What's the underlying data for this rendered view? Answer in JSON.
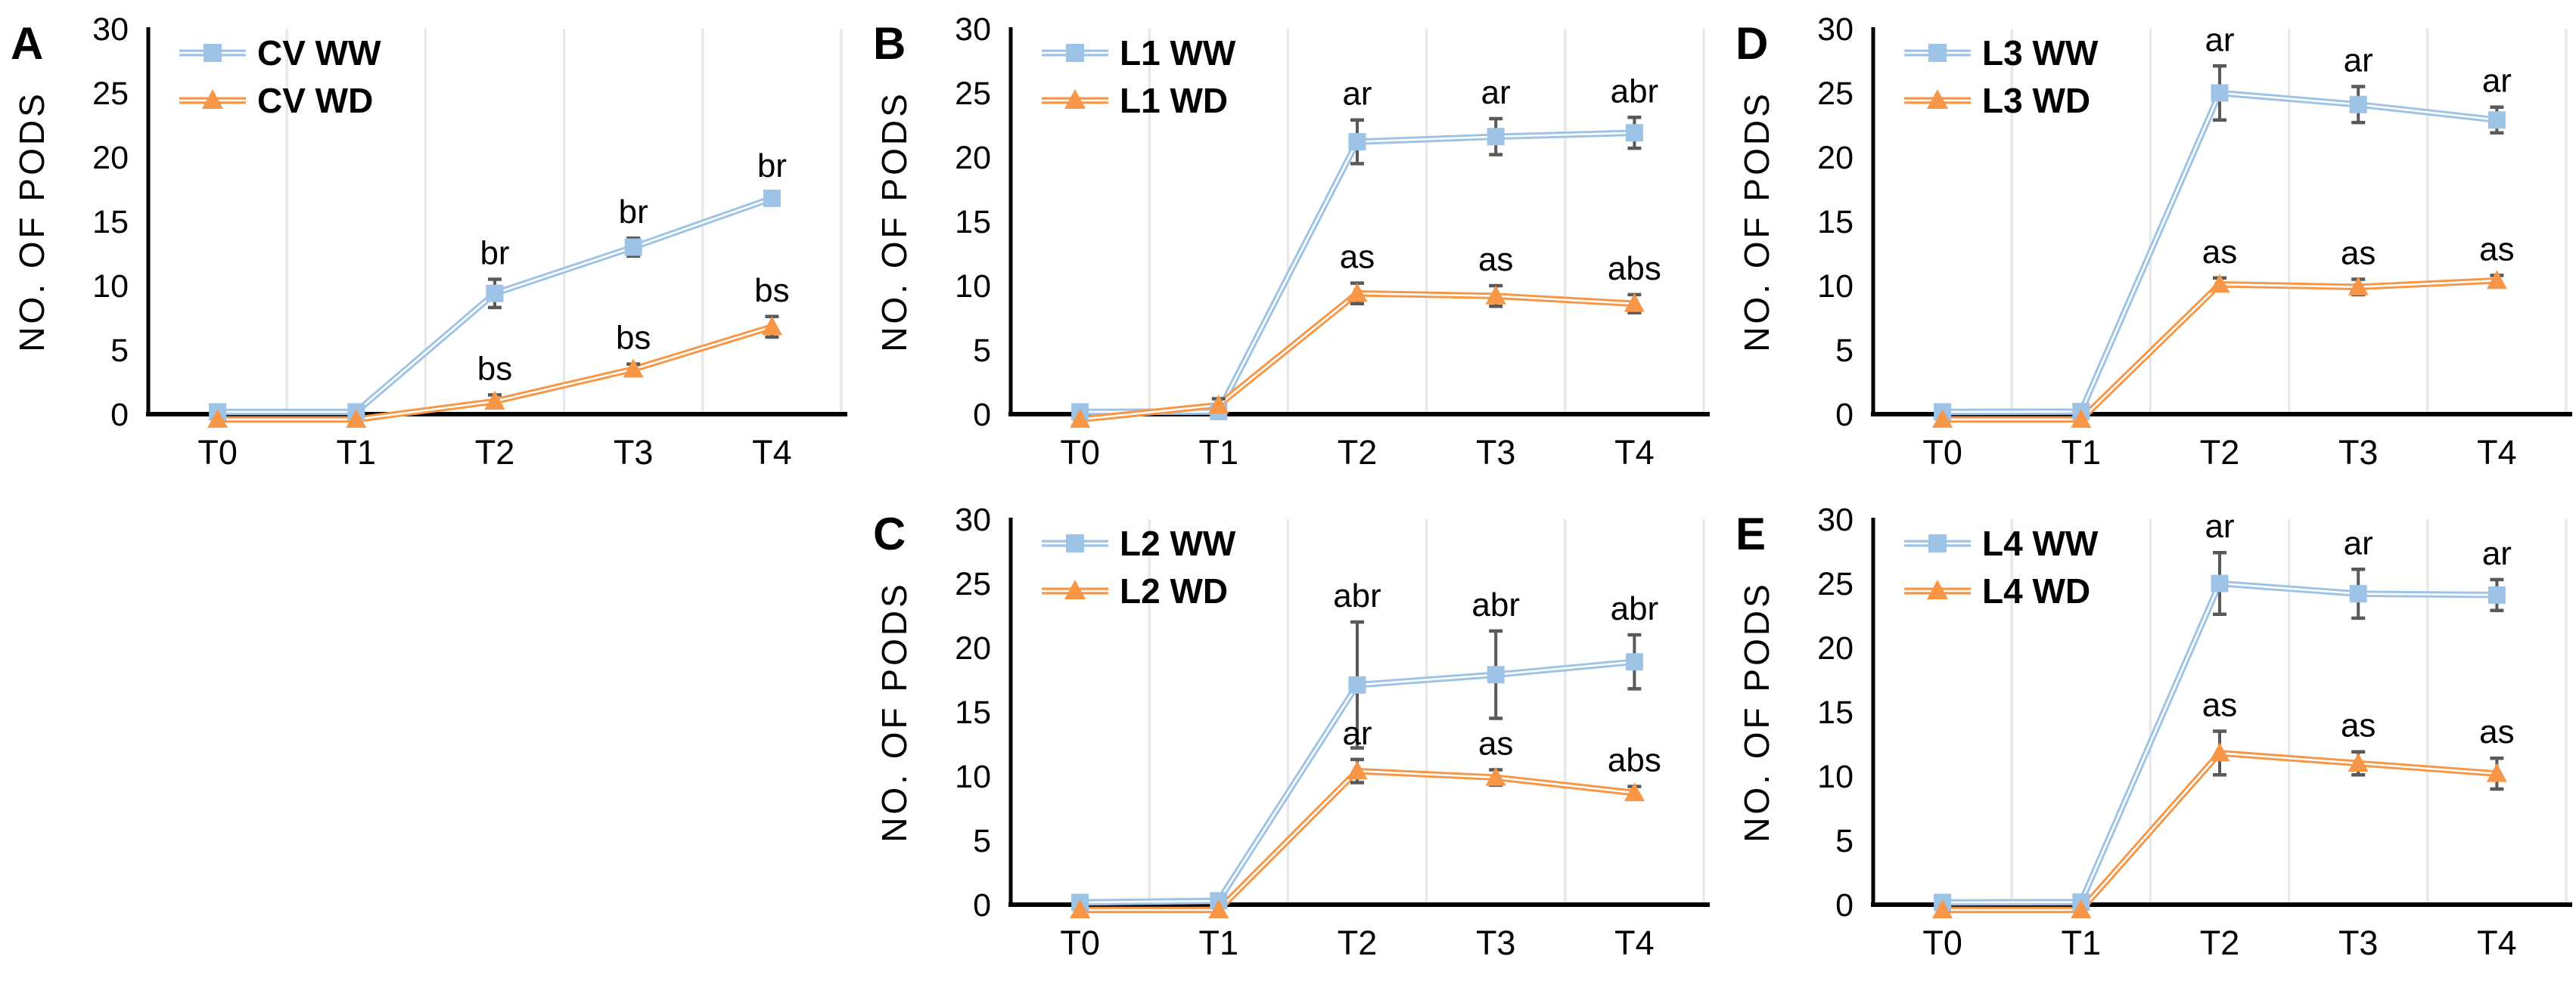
{
  "figure": {
    "background": "#FFFFFF",
    "y_axis_title": "NO. OF PODS",
    "x_tick_labels": [
      "T0",
      "T1",
      "T2",
      "T3",
      "T4"
    ],
    "y_tick_labels": [
      "0",
      "5",
      "10",
      "15",
      "20",
      "25",
      "30"
    ],
    "y_range": [
      0,
      30
    ],
    "legend_position": "top-left-inside",
    "grid": "vertical-lines-at-category-boundaries",
    "colors": {
      "ww_series": "#9DC3E6",
      "wd_series": "#F79646",
      "line_inner_stripe": "#FFFFFF",
      "error_bar": "#595959",
      "gridline": "#E8E8E8",
      "axis": "#000000",
      "text": "#000000"
    },
    "marker_shapes": {
      "ww": "square",
      "wd": "triangle"
    }
  },
  "chart_data": [
    {
      "type": "line",
      "panel": "A",
      "title": "",
      "xlabel": "",
      "ylabel": "NO. OF PODS",
      "ylim": [
        0,
        30
      ],
      "categories": [
        "T0",
        "T1",
        "T2",
        "T3",
        "T4"
      ],
      "series": [
        {
          "name": "CV WW",
          "color_key": "ww",
          "marker": "square",
          "values": [
            0,
            0,
            9.4,
            13.0,
            16.8
          ],
          "errors": [
            0,
            0,
            1.1,
            0.7,
            0.5
          ],
          "point_labels": [
            "",
            "",
            "br",
            "br",
            "br"
          ]
        },
        {
          "name": "CV WD",
          "color_key": "wd",
          "marker": "triangle",
          "values": [
            0,
            0,
            1.0,
            3.5,
            6.8
          ],
          "errors": [
            0,
            0,
            0.5,
            0.4,
            0.8
          ],
          "point_labels": [
            "",
            "",
            "bs",
            "bs",
            "bs"
          ]
        }
      ]
    },
    {
      "type": "line",
      "panel": "B",
      "title": "",
      "xlabel": "",
      "ylabel": "NO. OF PODS",
      "ylim": [
        0,
        30
      ],
      "categories": [
        "T0",
        "T1",
        "T2",
        "T3",
        "T4"
      ],
      "series": [
        {
          "name": "L1 WW",
          "color_key": "ww",
          "marker": "square",
          "values": [
            0,
            0.2,
            21.2,
            21.6,
            21.9
          ],
          "errors": [
            0,
            0,
            1.7,
            1.4,
            1.2
          ],
          "point_labels": [
            "",
            "",
            "ar",
            "ar",
            "abr"
          ]
        },
        {
          "name": "L1 WD",
          "color_key": "wd",
          "marker": "triangle",
          "values": [
            0,
            0.7,
            9.4,
            9.2,
            8.6
          ],
          "errors": [
            0,
            0.5,
            0.8,
            0.8,
            0.7
          ],
          "point_labels": [
            "",
            "",
            "as",
            "as",
            "abs"
          ]
        }
      ]
    },
    {
      "type": "line",
      "panel": "C",
      "title": "",
      "xlabel": "",
      "ylabel": "NO. OF PODS",
      "ylim": [
        0,
        30
      ],
      "categories": [
        "T0",
        "T1",
        "T2",
        "T3",
        "T4"
      ],
      "series": [
        {
          "name": "L2 WW",
          "color_key": "ww",
          "marker": "square",
          "values": [
            0,
            0.3,
            17.1,
            17.9,
            18.9
          ],
          "errors": [
            0,
            0,
            4.9,
            3.4,
            2.1
          ],
          "point_labels": [
            "",
            "",
            "abr",
            "abr",
            "abr"
          ]
        },
        {
          "name": "L2 WD",
          "color_key": "wd",
          "marker": "triangle",
          "values": [
            0,
            0,
            10.4,
            9.9,
            8.7
          ],
          "errors": [
            0,
            0,
            0.9,
            0.6,
            0.5
          ],
          "point_labels": [
            "",
            "",
            "ar",
            "as",
            "abs"
          ]
        }
      ]
    },
    {
      "type": "line",
      "panel": "D",
      "title": "",
      "xlabel": "",
      "ylabel": "NO. OF PODS",
      "ylim": [
        0,
        30
      ],
      "categories": [
        "T0",
        "T1",
        "T2",
        "T3",
        "T4"
      ],
      "series": [
        {
          "name": "L3 WW",
          "color_key": "ww",
          "marker": "square",
          "values": [
            0,
            0.2,
            25.0,
            24.1,
            22.9
          ],
          "errors": [
            0,
            0,
            2.1,
            1.4,
            1.0
          ],
          "point_labels": [
            "",
            "",
            "ar",
            "ar",
            "ar"
          ]
        },
        {
          "name": "L3 WD",
          "color_key": "wd",
          "marker": "triangle",
          "values": [
            0,
            0,
            10.1,
            9.9,
            10.4
          ],
          "errors": [
            0,
            0,
            0.5,
            0.6,
            0.4
          ],
          "point_labels": [
            "",
            "",
            "as",
            "as",
            "as"
          ]
        }
      ]
    },
    {
      "type": "line",
      "panel": "E",
      "title": "",
      "xlabel": "",
      "ylabel": "NO. OF PODS",
      "ylim": [
        0,
        30
      ],
      "categories": [
        "T0",
        "T1",
        "T2",
        "T3",
        "T4"
      ],
      "series": [
        {
          "name": "L4 WW",
          "color_key": "ww",
          "marker": "square",
          "values": [
            0,
            0.2,
            25.0,
            24.2,
            24.1
          ],
          "errors": [
            0,
            0,
            2.4,
            1.9,
            1.2
          ],
          "point_labels": [
            "",
            "",
            "ar",
            "ar",
            "ar"
          ]
        },
        {
          "name": "L4 WD",
          "color_key": "wd",
          "marker": "triangle",
          "values": [
            0,
            0,
            11.8,
            11.0,
            10.2
          ],
          "errors": [
            0,
            0,
            1.7,
            0.9,
            1.2
          ],
          "point_labels": [
            "",
            "",
            "as",
            "as",
            "as"
          ]
        }
      ]
    }
  ]
}
